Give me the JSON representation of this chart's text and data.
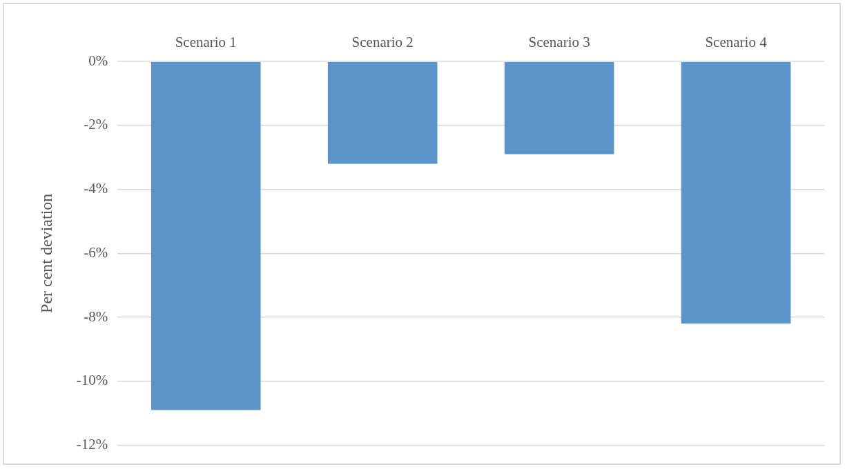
{
  "chart_data": {
    "type": "bar",
    "ylabel": "Per cent deviation",
    "categories": [
      "Scenario 1",
      "Scenario 2",
      "Scenario 3",
      "Scenario 4"
    ],
    "values": [
      -10.9,
      -3.2,
      -2.9,
      -8.2
    ],
    "color": "#5b94c9",
    "ylim": [
      -12,
      0
    ],
    "yticks": [
      {
        "value": 0,
        "label": "0%"
      },
      {
        "value": -2,
        "label": "-2%"
      },
      {
        "value": -4,
        "label": "-4%"
      },
      {
        "value": -6,
        "label": "-6%"
      },
      {
        "value": -8,
        "label": "-8%"
      },
      {
        "value": -10,
        "label": "-10%"
      },
      {
        "value": -12,
        "label": "-12%"
      }
    ],
    "grid": "y",
    "legend": false
  }
}
